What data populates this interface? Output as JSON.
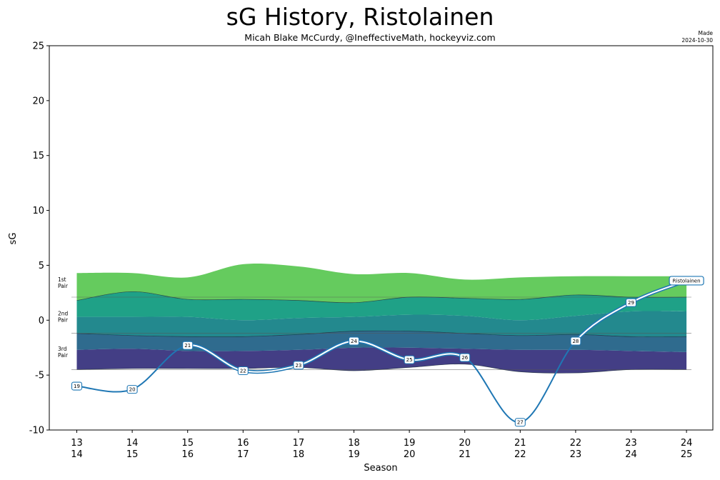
{
  "header": {
    "title": "sG History, Ristolainen",
    "subtitle": "Micah Blake McCurdy, @IneffectiveMath, hockeyviz.com",
    "made_label": "Made",
    "made_date": "2024-10-30"
  },
  "chart_data": {
    "type": "area",
    "title": "sG History, Ristolainen",
    "xlabel": "Season",
    "ylabel": "sG",
    "ylim": [
      -10,
      25
    ],
    "yticks": [
      -10,
      -5,
      0,
      5,
      10,
      15,
      20,
      25
    ],
    "grid": false,
    "seasons": [
      {
        "top": "13",
        "bottom": "14"
      },
      {
        "top": "14",
        "bottom": "15"
      },
      {
        "top": "15",
        "bottom": "16"
      },
      {
        "top": "16",
        "bottom": "17"
      },
      {
        "top": "17",
        "bottom": "18"
      },
      {
        "top": "18",
        "bottom": "19"
      },
      {
        "top": "19",
        "bottom": "20"
      },
      {
        "top": "20",
        "bottom": "21"
      },
      {
        "top": "21",
        "bottom": "22"
      },
      {
        "top": "22",
        "bottom": "23"
      },
      {
        "top": "23",
        "bottom": "24"
      },
      {
        "top": "24",
        "bottom": "25"
      }
    ],
    "bands": {
      "b0": [
        -4.5,
        -4.4,
        -4.4,
        -4.4,
        -4.3,
        -4.6,
        -4.3,
        -4.0,
        -4.7,
        -4.8,
        -4.5,
        -4.5
      ],
      "b1": [
        -2.7,
        -2.6,
        -2.8,
        -2.8,
        -2.7,
        -2.5,
        -2.5,
        -2.6,
        -2.7,
        -2.7,
        -2.8,
        -2.9
      ],
      "b2": [
        -1.2,
        -1.4,
        -1.5,
        -1.5,
        -1.3,
        -1.0,
        -1.0,
        -1.2,
        -1.4,
        -1.3,
        -1.5,
        -1.5
      ],
      "b3": [
        0.3,
        0.3,
        0.3,
        0.0,
        0.2,
        0.3,
        0.5,
        0.4,
        0.0,
        0.4,
        0.8,
        0.8
      ],
      "b4": [
        1.8,
        2.6,
        1.9,
        1.9,
        1.8,
        1.6,
        2.1,
        2.0,
        1.9,
        2.3,
        2.1,
        2.1
      ],
      "b5": [
        4.3,
        4.3,
        3.9,
        5.1,
        4.9,
        4.2,
        4.3,
        3.7,
        3.9,
        4.0,
        4.0,
        4.0
      ]
    },
    "band_colors": [
      "#433e85",
      "#2f6b8e",
      "#23898e",
      "#1fa187",
      "#65cb5e"
    ],
    "tier_labels": [
      {
        "line1": "1st",
        "line2": "Pair",
        "y": 3.4
      },
      {
        "line1": "2nd",
        "line2": "Pair",
        "y": 0.3
      },
      {
        "line1": "3rd",
        "line2": "Pair",
        "y": -2.9
      }
    ],
    "tier_lines": [
      2.1,
      -1.2,
      -4.5
    ],
    "series": [
      {
        "name": "Ristolainen",
        "color": "#1f77b4",
        "values": [
          -6.0,
          -6.3,
          -2.3,
          -4.6,
          -4.1,
          -1.9,
          -3.6,
          -3.4,
          -9.3,
          -1.9,
          1.6,
          3.6
        ],
        "ages": [
          "19",
          "20",
          "21",
          "22",
          "23",
          "24",
          "25",
          "26",
          "27",
          "28",
          "29",
          ""
        ]
      }
    ]
  }
}
